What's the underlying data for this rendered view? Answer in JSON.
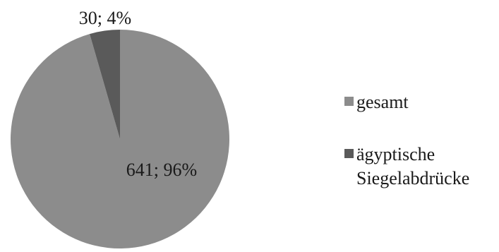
{
  "chart_data": {
    "type": "pie",
    "categories": [
      "gesamt",
      "ägyptische Siegelabdrücke"
    ],
    "values": [
      641,
      30
    ],
    "percentages": [
      96,
      4
    ],
    "data_labels": [
      "641; 96%",
      "30; 4%"
    ],
    "colors": [
      "#8c8c8c",
      "#5a5a5a"
    ],
    "legend_position": "right",
    "start_angle": "12 o'clock",
    "legend": [
      {
        "label": "gesamt",
        "color": "#8c8c8c"
      },
      {
        "label": "ägyptische\nSiegelabdrücke",
        "color": "#5a5a5a"
      }
    ]
  }
}
